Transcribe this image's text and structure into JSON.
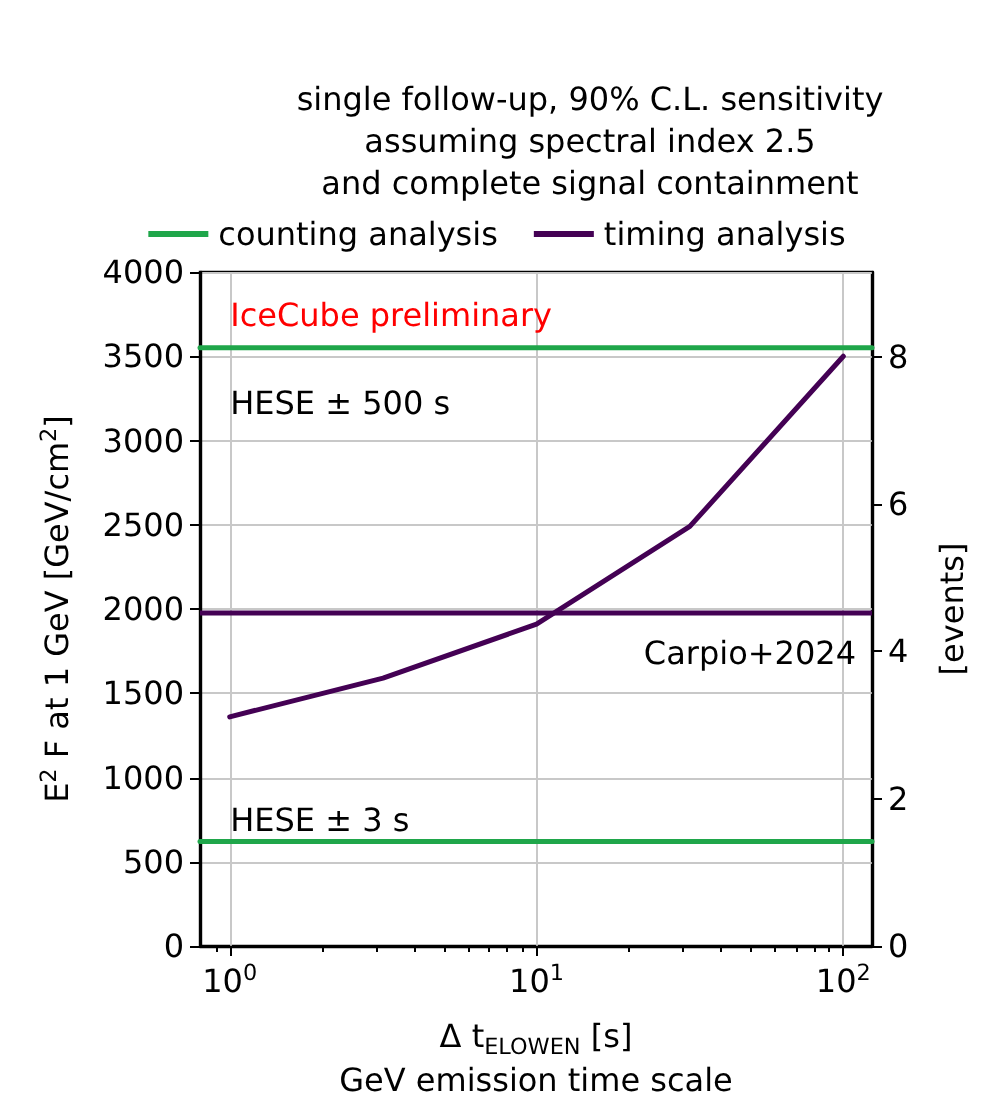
{
  "chart_data": {
    "type": "line",
    "title": "single follow-up, 90% C.L. sensitivity\nassuming spectral index 2.5\nand complete signal containment",
    "xlabel": "Δ t$_{ELOWEN}$ [s]\nGeV emission time scale",
    "ylabel": "E$^{2}$ F at 1 GeV [GeV/cm$^{2}$]",
    "y2label": "[events]",
    "log": "x",
    "xlim": [
      0.8,
      124
    ],
    "xticks": [
      {
        "value": 1,
        "label": "10$^{0}$"
      },
      {
        "value": 10,
        "label": "10$^{1}$"
      },
      {
        "value": 100,
        "label": "10$^{2}$"
      }
    ],
    "ylim": [
      0,
      4000
    ],
    "yticks": [
      0,
      500,
      1000,
      1500,
      2000,
      2500,
      3000,
      3500,
      4000
    ],
    "y2lim": [
      0,
      9.15
    ],
    "y2ticks": [
      0,
      2,
      4,
      6,
      8
    ],
    "grid": true,
    "legend": "top",
    "series": [
      {
        "name": "counting analysis",
        "color": "#1fa64a",
        "x": [
          0.8,
          124
        ],
        "values": [
          3550,
          3550
        ]
      },
      {
        "color": "#1fa64a",
        "x": [
          0.8,
          124
        ],
        "values": [
          620,
          620
        ]
      },
      {
        "name": "timing analysis",
        "color": "#440154",
        "x": [
          1,
          3.16,
          10,
          31.6,
          100
        ],
        "values": [
          1360,
          1590,
          1910,
          2490,
          3500
        ]
      }
    ],
    "ref_lines": [
      {
        "axis": "y",
        "value": 1975,
        "label": "Carpio+2024",
        "color": "#440154"
      }
    ],
    "annotations": [
      "IceCube preliminary",
      "HESE ± 500 s",
      "HESE ± 3 s"
    ]
  }
}
